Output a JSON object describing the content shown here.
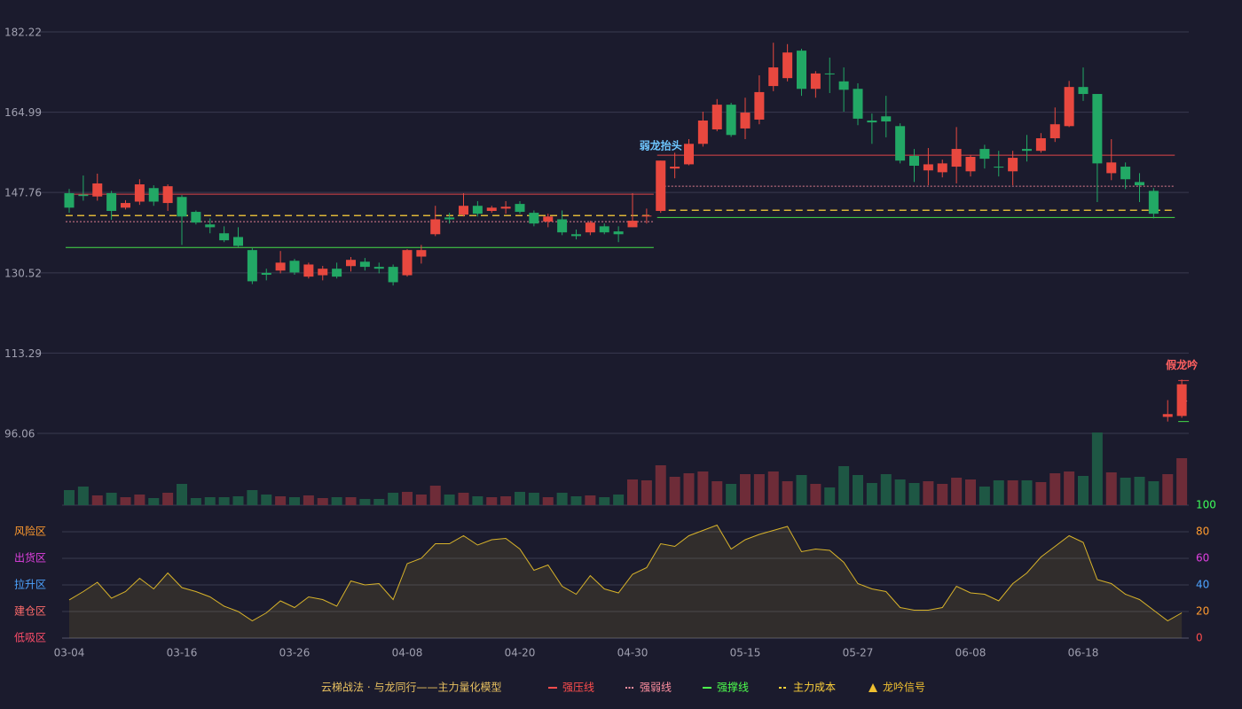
{
  "chart_data": {
    "type": "candlestick",
    "categories": [
      "03-04",
      null,
      null,
      null,
      null,
      null,
      null,
      null,
      "03-16",
      null,
      null,
      null,
      null,
      null,
      null,
      null,
      "03-26",
      null,
      null,
      null,
      null,
      null,
      null,
      null,
      "04-08",
      null,
      null,
      null,
      null,
      null,
      null,
      null,
      "04-20",
      null,
      null,
      null,
      null,
      null,
      null,
      null,
      "04-30",
      null,
      null,
      null,
      null,
      null,
      null,
      null,
      "05-15",
      null,
      null,
      null,
      null,
      null,
      null,
      null,
      "05-27",
      null,
      null,
      null,
      null,
      null,
      null,
      null,
      "06-08",
      null,
      null,
      null,
      null,
      null,
      null,
      null,
      "06-18",
      null,
      null,
      null,
      null,
      null,
      null,
      null
    ],
    "open": [
      147.6,
      147.3,
      146.9,
      147.6,
      144.5,
      145.8,
      148.7,
      145.5,
      146.8,
      143.6,
      140.9,
      139.0,
      138.2,
      135.4,
      130.5,
      131.0,
      133.1,
      129.7,
      130.0,
      131.4,
      131.96,
      132.9,
      131.8,
      131.8,
      130.0,
      134.0,
      138.8,
      142.4,
      143.0,
      144.9,
      143.8,
      144.3,
      145.3,
      143.4,
      141.5,
      142.0,
      138.8,
      139.2,
      140.5,
      139.4,
      140.3,
      142.6,
      143.8,
      152.9,
      153.8,
      158.2,
      161.3,
      166.6,
      161.5,
      163.4,
      170.6,
      172.3,
      178.2,
      170.0,
      173.3,
      171.6,
      170.0,
      163.2,
      164.1,
      162.0,
      155.6,
      152.5,
      152.1,
      153.3,
      152.3,
      157.1,
      153.3,
      152.3,
      157.1,
      156.7,
      159.4,
      162.0,
      170.4,
      168.9,
      151.9,
      153.3,
      150.0,
      148.1,
      99.6,
      99.8
    ],
    "high": [
      148.5,
      151.4,
      151.8,
      148.1,
      146.1,
      150.6,
      149.3,
      149.5,
      147.2,
      143.9,
      142.2,
      140.5,
      140.3,
      135.8,
      131.4,
      135.2,
      133.5,
      132.7,
      132.0,
      132.7,
      133.9,
      133.7,
      132.7,
      132.3,
      135.6,
      136.5,
      144.9,
      143.4,
      147.6,
      145.9,
      144.9,
      145.9,
      145.9,
      143.9,
      143.2,
      143.9,
      139.8,
      141.7,
      141.1,
      140.5,
      147.6,
      144.3,
      154.6,
      156.3,
      159.2,
      165.1,
      167.8,
      167.0,
      168.1,
      172.9,
      179.9,
      179.6,
      178.6,
      173.8,
      176.7,
      174.6,
      171.2,
      164.7,
      168.5,
      162.6,
      157.1,
      157.3,
      154.8,
      161.8,
      155.8,
      158.0,
      156.7,
      156.7,
      160.1,
      160.5,
      166.0,
      171.7,
      174.6,
      168.9,
      159.2,
      154.2,
      151.9,
      148.7,
      103.2,
      107.6
    ],
    "low": [
      143.4,
      146.0,
      146.0,
      141.9,
      144.1,
      145.1,
      144.9,
      143.8,
      136.5,
      140.9,
      139.0,
      137.1,
      136.1,
      128.1,
      128.9,
      130.4,
      130.1,
      129.3,
      128.9,
      129.3,
      130.8,
      131.0,
      130.4,
      127.8,
      129.7,
      132.5,
      138.4,
      141.1,
      142.6,
      142.6,
      143.4,
      143.2,
      143.2,
      140.5,
      140.3,
      138.6,
      137.7,
      138.6,
      138.8,
      137.1,
      140.3,
      141.1,
      143.4,
      150.8,
      153.6,
      157.6,
      160.9,
      159.7,
      159.2,
      162.4,
      169.5,
      171.6,
      168.5,
      168.1,
      169.1,
      165.1,
      162.2,
      158.2,
      159.6,
      154.0,
      150.0,
      149.3,
      151.0,
      149.7,
      151.2,
      152.9,
      151.2,
      149.3,
      154.4,
      156.3,
      158.6,
      161.8,
      167.4,
      145.7,
      150.4,
      148.5,
      145.7,
      142.2,
      98.6,
      99.4
    ],
    "close": [
      144.5,
      147.0,
      149.7,
      143.8,
      145.5,
      149.5,
      145.8,
      149.1,
      142.6,
      141.3,
      140.3,
      137.5,
      136.3,
      128.7,
      130.1,
      132.7,
      130.6,
      132.3,
      131.4,
      129.7,
      133.3,
      131.8,
      131.4,
      128.5,
      135.4,
      135.4,
      142.0,
      142.0,
      144.9,
      143.2,
      144.5,
      144.7,
      143.6,
      141.1,
      142.6,
      139.2,
      138.4,
      141.3,
      139.2,
      138.8,
      141.7,
      142.8,
      154.6,
      153.3,
      158.2,
      163.2,
      166.6,
      160.1,
      164.9,
      169.3,
      174.6,
      177.8,
      170.0,
      173.3,
      173.1,
      169.8,
      163.6,
      162.8,
      163.0,
      154.6,
      153.5,
      153.8,
      154.0,
      157.1,
      155.4,
      155.0,
      153.1,
      155.2,
      156.7,
      159.4,
      162.4,
      170.4,
      168.9,
      154.0,
      154.2,
      150.6,
      149.3,
      143.2,
      100.2,
      106.6
    ],
    "up_color": "#e8483f",
    "down_color": "#22a865",
    "ylim": [
      96.06,
      182.22
    ],
    "yticks": [
      182.22,
      164.99,
      147.76,
      130.52,
      113.29,
      96.06
    ],
    "grid": true,
    "volume": [
      17,
      21,
      11,
      14,
      9,
      12,
      8,
      14,
      24,
      8,
      9,
      9,
      10,
      17,
      12,
      10,
      9,
      11,
      8,
      9,
      9,
      7,
      7,
      14,
      15,
      12,
      22,
      12,
      14,
      10,
      9,
      10,
      15,
      14,
      9,
      14,
      10,
      11,
      9,
      12,
      29,
      28,
      45,
      32,
      36,
      38,
      27,
      24,
      35,
      35,
      38,
      27,
      34,
      24,
      20,
      44,
      34,
      25,
      35,
      29,
      25,
      27,
      24,
      31,
      29,
      21,
      28,
      28,
      28,
      26,
      36,
      38,
      33,
      82,
      37,
      31,
      32,
      27,
      35,
      53
    ],
    "volume_up_color": "#6e2c38",
    "volume_down_color": "#1e5744",
    "oscillator": {
      "values": [
        28.7,
        35,
        42,
        30,
        35,
        45,
        37,
        49,
        38,
        35,
        31,
        24,
        20,
        13,
        19,
        28,
        23,
        31,
        29,
        24,
        43,
        40,
        41,
        29,
        56,
        60,
        71,
        71,
        77,
        70,
        74,
        75,
        67,
        51,
        55,
        39,
        33,
        47,
        37,
        34,
        48,
        53,
        71,
        69,
        77,
        81,
        85,
        67,
        74,
        78,
        81,
        84,
        65,
        67,
        66,
        57,
        41,
        37,
        35,
        23,
        21,
        21,
        23,
        39,
        34,
        33,
        28,
        41,
        49,
        61,
        69,
        77,
        72,
        44,
        41,
        33,
        29,
        21,
        13,
        19
      ],
      "color": "#d8b32a",
      "ylim": [
        0,
        100
      ],
      "yticks": [
        0,
        20,
        40,
        60,
        80,
        100
      ],
      "ytick_colors": [
        "#ff4d4d",
        "#ff9a2e",
        "#4da3ff",
        "#e040e0",
        "#ff9a2e",
        "#3dff5a"
      ],
      "zones": [
        {
          "value": 80,
          "label": "风险区",
          "color": "#ff9a2e"
        },
        {
          "value": 60,
          "label": "出货区",
          "color": "#e040e0"
        },
        {
          "value": 40,
          "label": "拉升区",
          "color": "#4da3ff"
        },
        {
          "value": 20,
          "label": "建仓区",
          "color": "#ff6b6b"
        },
        {
          "value": 0,
          "label": "低吸区",
          "color": "#ff4d6a"
        }
      ]
    },
    "levels": [
      {
        "start": 0,
        "end": 41,
        "values": [
          147.4,
          141.5,
          135.95,
          142.8
        ]
      },
      {
        "start": 42,
        "end": 78,
        "values": [
          155.75,
          149.1,
          142.4,
          143.95
        ]
      },
      {
        "start": 79,
        "end": 79,
        "values": [
          107.4,
          103.0,
          98.6,
          103.0
        ]
      }
    ],
    "annotations": [
      {
        "text": "弱龙抬头",
        "index": 42,
        "color": "#6ec6ff"
      },
      {
        "text": "假龙吟",
        "index": 79,
        "color": "#ff6060"
      }
    ],
    "legend": {
      "title": "云梯战法 · 与龙同行——主力量化模型",
      "title_color": "#e8c060",
      "items": [
        {
          "name": "强压线",
          "color": "#ff4d4d",
          "style": "solid"
        },
        {
          "name": "强弱线",
          "color": "#ff8fa0",
          "style": "dotted"
        },
        {
          "name": "强撑线",
          "color": "#4dff4d",
          "style": "solid"
        },
        {
          "name": "主力成本",
          "color": "#ffd23a",
          "style": "dashed"
        },
        {
          "name": "龙吟信号",
          "color": "#f0c030",
          "style": "triangle"
        }
      ]
    }
  }
}
